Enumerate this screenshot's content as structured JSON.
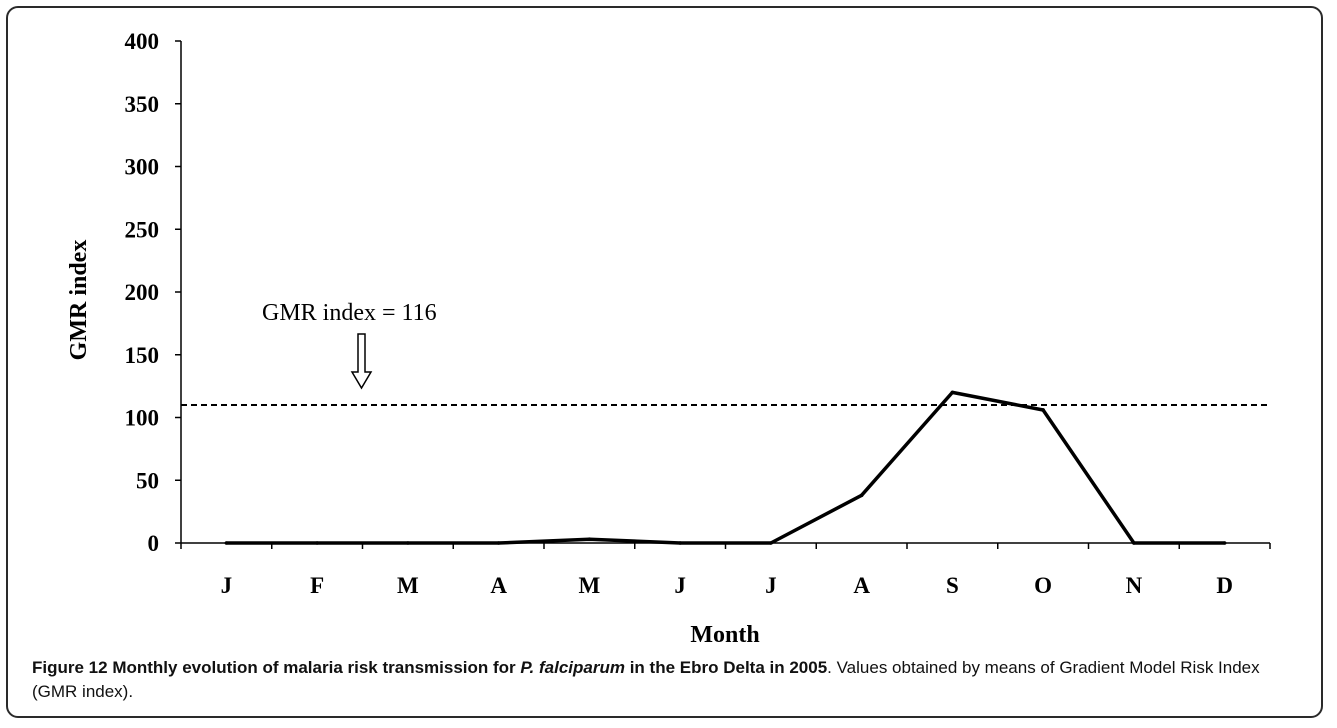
{
  "chart_data": {
    "type": "line",
    "categories": [
      "J",
      "F",
      "M",
      "A",
      "M",
      "J",
      "J",
      "A",
      "S",
      "O",
      "N",
      "D"
    ],
    "series": [
      {
        "values": [
          0,
          0,
          0,
          0,
          3,
          0,
          0,
          38,
          120,
          106,
          0,
          0
        ]
      }
    ],
    "reference_line": {
      "value": 110,
      "style": "dashed"
    },
    "annotation": {
      "text": "GMR index = 116",
      "arrow": "down"
    },
    "xlabel": "Month",
    "ylabel": "GMR index",
    "ylim": [
      0,
      400
    ],
    "yticks": [
      "0",
      "50",
      "100",
      "150",
      "200",
      "250",
      "300",
      "350",
      "400"
    ],
    "grid": false,
    "legend": "none"
  },
  "caption": {
    "label": "Figure 12",
    "title_part1": " Monthly evolution of malaria risk transmission for ",
    "species": "P. falciparum",
    "title_part2": " in the Ebro Delta in 2005",
    "rest": ". Values obtained by means of Gradient Model Risk Index (GMR index)."
  }
}
